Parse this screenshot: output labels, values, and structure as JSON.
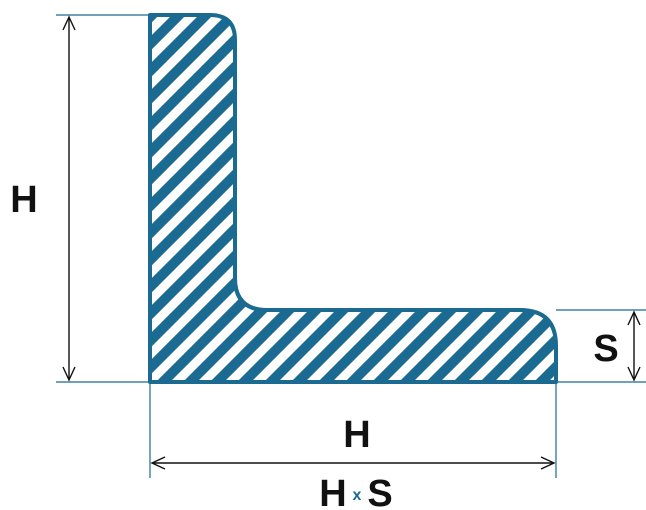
{
  "labels": {
    "height": "H",
    "width": "H",
    "thickness": "S",
    "designation_left": "H",
    "designation_times": "x",
    "designation_right": "S"
  },
  "colors": {
    "profile": "#1a6a92",
    "guide_line": "#1a6a92",
    "dimension_line": "#111111",
    "text": "#111111",
    "background": "#ffffff"
  }
}
